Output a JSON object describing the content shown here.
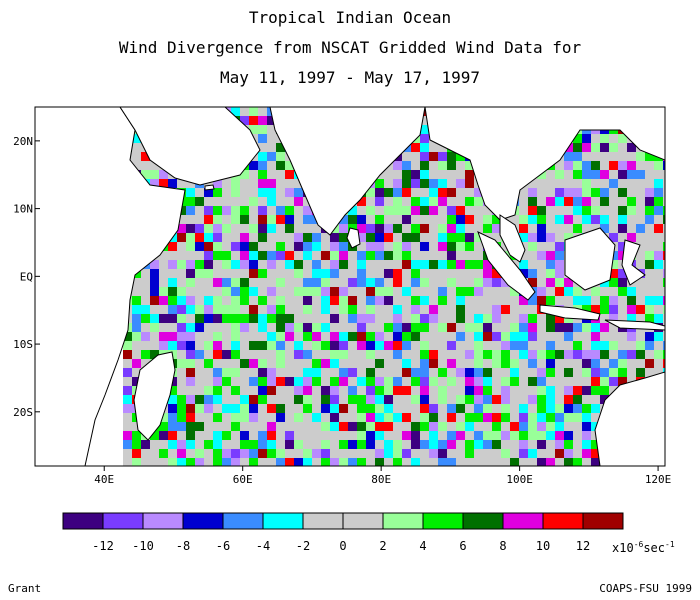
{
  "header": {
    "title_line1": "Tropical Indian Ocean",
    "title_line2": "Wind Divergence from NSCAT Gridded Wind Data for",
    "title_line3": "May 11, 1997 - May 17, 1997"
  },
  "map": {
    "region": "Tropical Indian Ocean",
    "projection": "lat-lon",
    "lon_range": [
      30,
      121
    ],
    "lat_range": [
      -28,
      25
    ],
    "x_ticks": [
      "40E",
      "60E",
      "80E",
      "100E",
      "120E"
    ],
    "y_ticks": [
      "20N",
      "10N",
      "EQ",
      "10S",
      "20S"
    ],
    "x_tick_values": [
      40,
      60,
      80,
      100,
      120
    ],
    "y_tick_values": [
      20,
      10,
      0,
      -10,
      -20
    ]
  },
  "legend": {
    "colors": [
      "#3d0080",
      "#7a3cff",
      "#b98aff",
      "#0000d0",
      "#3a8cff",
      "#00ffff",
      "#cccccc",
      "#cccccc",
      "#99ff99",
      "#00ee00",
      "#007000",
      "#e000e0",
      "#ff0000",
      "#a00000"
    ],
    "labels": [
      "-12",
      "-10",
      "-8",
      "-6",
      "-4",
      "-2",
      "0",
      "2",
      "4",
      "6",
      "8",
      "10",
      "12"
    ],
    "units_prefix": "x10",
    "units_exp": "-6",
    "units_suffix": "sec",
    "units_suffix_exp": "-1"
  },
  "footer": {
    "left": "Grant",
    "right": "COAPS-FSU 1999"
  }
}
